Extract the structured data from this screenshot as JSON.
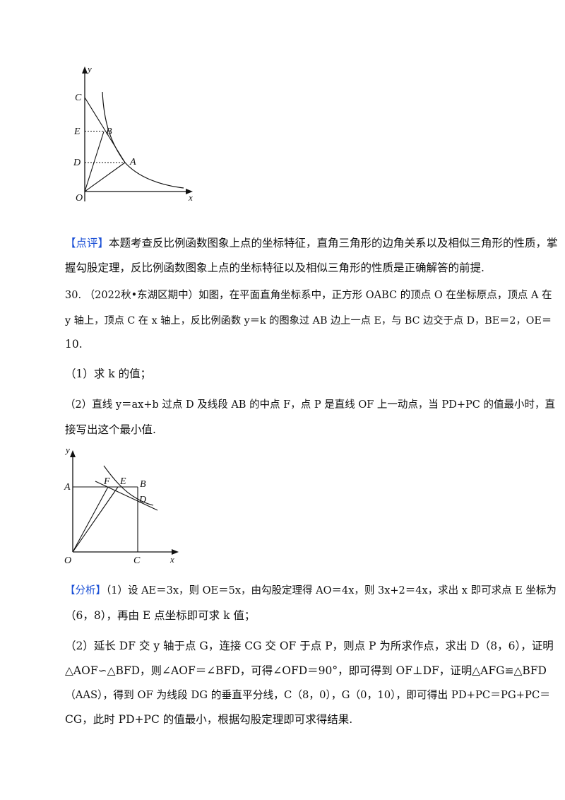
{
  "figure1": {
    "labels": {
      "y": "y",
      "x": "x",
      "O": "O",
      "C": "C",
      "E": "E",
      "D": "D",
      "B": "B",
      "A": "A"
    }
  },
  "comment": {
    "tag": "【点评】",
    "line1": "本题考查反比例函数图象上点的坐标特征，直角三角形的边角关系以及相似三角形的性质，掌",
    "line2": "握勾股定理，反比例函数图象上点的坐标特征以及相似三角形的性质是正确解答的前提."
  },
  "problem": {
    "number": "30.",
    "line1": "（2022秋•东湖区期中）如图，在平面直角坐标系中，正方形 OABC 的顶点 O 在坐标原点，顶点 A 在",
    "line2": "y 轴上，顶点 C 在 x 轴上，反比例函数 y＝k 的图象过 AB 边上一点 E，与 BC 边交于点 D，BE＝2，OE＝",
    "line3": "10.",
    "q1": "（1）求 k 的值；",
    "q2_line1": "（2）直线 y＝ax+b 过点 D 及线段 AB 的中点 F，点 P 是直线 OF 上一动点，当 PD+PC 的值最小时，直",
    "q2_line2": "接写出这个最小值."
  },
  "figure2": {
    "labels": {
      "y": "y",
      "x": "x",
      "O": "O",
      "A": "A",
      "F": "F",
      "E": "E",
      "B": "B",
      "D": "D",
      "C": "C"
    }
  },
  "analysis": {
    "tag": "【分析】",
    "line1": "（1）设 AE＝3x，则 OE＝5x，由勾股定理得 AO＝4x，则 3x+2＝4x，求出 x 即可求点 E 坐标为",
    "line2": "（6，8），再由 E 点坐标即可求 k 值；",
    "line3": "（2）延长 DF 交 y 轴于点 G，连接 CG 交 OF 于点 P，则点 P 为所求作点，求出 D（8，6），证明",
    "line4": "△AOF∽△BFD，则∠AOF＝∠BFD，可得∠OFD＝90°，即可得到 OF⊥DF，证明△AFG≌△BFD",
    "line5": "（AAS），得到 OF 为线段 DG 的垂直平分线，C（8，0），G（0，10），即可得出 PD+PC＝PG+PC＝",
    "line6": "CG，此时 PD+PC 的值最小，根据勾股定理即可求得结果."
  }
}
